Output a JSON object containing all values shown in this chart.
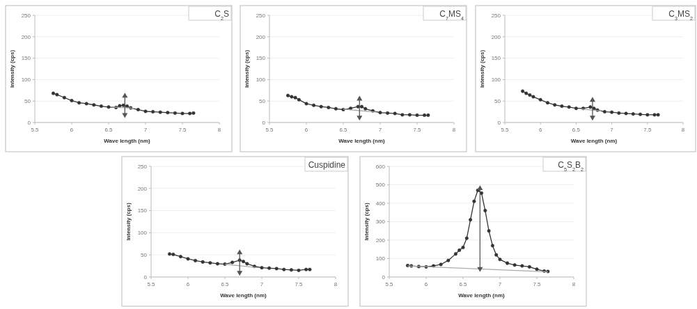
{
  "chart_data": [
    {
      "type": "line",
      "title": "C$_{2}$S",
      "xlabel": "Wave length (nm)",
      "ylabel": "Intensity (cps)",
      "xlim": [
        5.5,
        8
      ],
      "xticks": [
        5.5,
        6,
        6.5,
        7,
        7.5,
        8
      ],
      "ylim": [
        0,
        250
      ],
      "yticks": [
        0,
        50,
        100,
        150,
        200,
        250
      ],
      "grid": "y",
      "series": [
        {
          "color": "#333333",
          "marker": "circle",
          "x": [
            5.75,
            5.8,
            5.9,
            6.0,
            6.1,
            6.2,
            6.3,
            6.4,
            6.5,
            6.6,
            6.65,
            6.7,
            6.75,
            6.8,
            6.9,
            7.0,
            7.1,
            7.2,
            7.3,
            7.4,
            7.5,
            7.6,
            7.65
          ],
          "values": [
            68,
            65,
            58,
            51,
            46,
            44,
            41,
            38,
            36,
            35,
            39,
            40,
            38,
            34,
            30,
            26,
            25,
            24,
            23,
            22,
            21,
            21,
            22
          ]
        },
        {
          "type": "line",
          "color": "#aaaaaa",
          "marker": "none",
          "x": [
            6.55,
            6.85
          ],
          "values": [
            36,
            33
          ]
        },
        {
          "type": "line",
          "color": "#555555",
          "marker": "triangle",
          "x": [
            6.72,
            6.72
          ],
          "values": [
            18,
            62
          ]
        }
      ]
    },
    {
      "type": "line",
      "title": "C$_{7}$MS$_{4}$",
      "xlabel": "Wave length (nm)",
      "ylabel": "Intensity (cps)",
      "xlim": [
        5.5,
        8
      ],
      "xticks": [
        5.5,
        6,
        6.5,
        7,
        7.5,
        8
      ],
      "ylim": [
        0,
        250
      ],
      "yticks": [
        0,
        50,
        100,
        150,
        200,
        250
      ],
      "grid": "y",
      "series": [
        {
          "color": "#333333",
          "marker": "circle",
          "x": [
            5.75,
            5.8,
            5.85,
            5.9,
            6.0,
            6.1,
            6.2,
            6.3,
            6.4,
            6.5,
            6.6,
            6.7,
            6.75,
            6.8,
            6.9,
            7.0,
            7.1,
            7.2,
            7.3,
            7.4,
            7.5,
            7.6,
            7.65
          ],
          "values": [
            63,
            60,
            58,
            53,
            44,
            40,
            37,
            35,
            32,
            30,
            33,
            37,
            37,
            32,
            27,
            23,
            22,
            21,
            18,
            18,
            17,
            17,
            17
          ]
        },
        {
          "type": "line",
          "color": "#aaaaaa",
          "marker": "none",
          "x": [
            6.5,
            6.95
          ],
          "values": [
            31,
            24
          ]
        },
        {
          "type": "line",
          "color": "#555555",
          "marker": "triangle",
          "x": [
            6.72,
            6.72
          ],
          "values": [
            12,
            55
          ]
        }
      ]
    },
    {
      "type": "line",
      "title": "C$_{3}$MS$_{2}$",
      "xlabel": "Wave length (nm)",
      "ylabel": "Intensity (cps)",
      "xlim": [
        5.5,
        8
      ],
      "xticks": [
        5.5,
        6,
        6.5,
        7,
        7.5,
        8
      ],
      "ylim": [
        0,
        250
      ],
      "yticks": [
        0,
        50,
        100,
        150,
        200,
        250
      ],
      "grid": "y",
      "series": [
        {
          "color": "#333333",
          "marker": "circle",
          "x": [
            5.75,
            5.8,
            5.85,
            5.9,
            6.0,
            6.1,
            6.2,
            6.3,
            6.4,
            6.5,
            6.6,
            6.7,
            6.75,
            6.8,
            6.9,
            7.0,
            7.1,
            7.2,
            7.3,
            7.4,
            7.5,
            7.6,
            7.65
          ],
          "values": [
            73,
            68,
            64,
            60,
            53,
            46,
            41,
            38,
            36,
            33,
            33,
            36,
            33,
            29,
            25,
            24,
            22,
            21,
            20,
            19,
            18,
            18,
            18
          ]
        },
        {
          "type": "line",
          "color": "#aaaaaa",
          "marker": "none",
          "x": [
            6.55,
            6.85
          ],
          "values": [
            32,
            27
          ]
        },
        {
          "type": "line",
          "color": "#555555",
          "marker": "triangle",
          "x": [
            6.73,
            6.73
          ],
          "values": [
            12,
            52
          ]
        }
      ]
    },
    {
      "type": "line",
      "title": "Cuspidine",
      "xlabel": "Wave length (nm)",
      "ylabel": "Intensity (cps)",
      "xlim": [
        5.5,
        8
      ],
      "xticks": [
        5.5,
        6,
        6.5,
        7,
        7.5,
        8
      ],
      "ylim": [
        0,
        250
      ],
      "yticks": [
        0,
        50,
        100,
        150,
        200,
        250
      ],
      "grid": "y",
      "series": [
        {
          "color": "#333333",
          "marker": "circle",
          "x": [
            5.75,
            5.8,
            5.9,
            6.0,
            6.1,
            6.2,
            6.3,
            6.4,
            6.5,
            6.6,
            6.7,
            6.75,
            6.8,
            6.9,
            7.0,
            7.1,
            7.2,
            7.3,
            7.4,
            7.5,
            7.6,
            7.65
          ],
          "values": [
            52,
            51,
            46,
            41,
            37,
            34,
            32,
            30,
            29,
            33,
            38,
            35,
            30,
            24,
            21,
            20,
            19,
            17,
            16,
            15,
            17,
            17
          ]
        },
        {
          "type": "line",
          "color": "#aaaaaa",
          "marker": "none",
          "x": [
            6.5,
            6.95
          ],
          "values": [
            29,
            21
          ]
        },
        {
          "type": "line",
          "color": "#555555",
          "marker": "triangle",
          "x": [
            6.7,
            6.7
          ],
          "values": [
            10,
            55
          ]
        }
      ]
    },
    {
      "type": "line",
      "title": "C$_{5}$S$_{2}$B$_{2}$",
      "xlabel": "Wave length (nm)",
      "ylabel": "Intensity (cps)",
      "xlim": [
        5.5,
        8
      ],
      "xticks": [
        5.5,
        6,
        6.5,
        7,
        7.5,
        8
      ],
      "ylim": [
        0,
        600
      ],
      "yticks": [
        0,
        100,
        200,
        300,
        400,
        500,
        600
      ],
      "grid": "y",
      "series": [
        {
          "color": "#333333",
          "marker": "circle",
          "x": [
            5.75,
            5.8,
            5.9,
            6.0,
            6.1,
            6.2,
            6.3,
            6.4,
            6.45,
            6.5,
            6.55,
            6.6,
            6.65,
            6.7,
            6.75,
            6.8,
            6.85,
            6.9,
            6.95,
            7.0,
            7.1,
            7.2,
            7.3,
            7.4,
            7.5,
            7.6,
            7.65
          ],
          "values": [
            62,
            60,
            57,
            55,
            60,
            68,
            90,
            125,
            145,
            160,
            210,
            310,
            410,
            470,
            455,
            360,
            250,
            170,
            120,
            95,
            75,
            65,
            60,
            55,
            42,
            32,
            30
          ]
        },
        {
          "type": "line",
          "color": "#aaaaaa",
          "marker": "none",
          "x": [
            5.75,
            7.65
          ],
          "values": [
            60,
            28
          ]
        },
        {
          "type": "line",
          "color": "#555555",
          "marker": "triangle",
          "x": [
            6.73,
            6.73
          ],
          "values": [
            45,
            480
          ]
        }
      ]
    }
  ]
}
